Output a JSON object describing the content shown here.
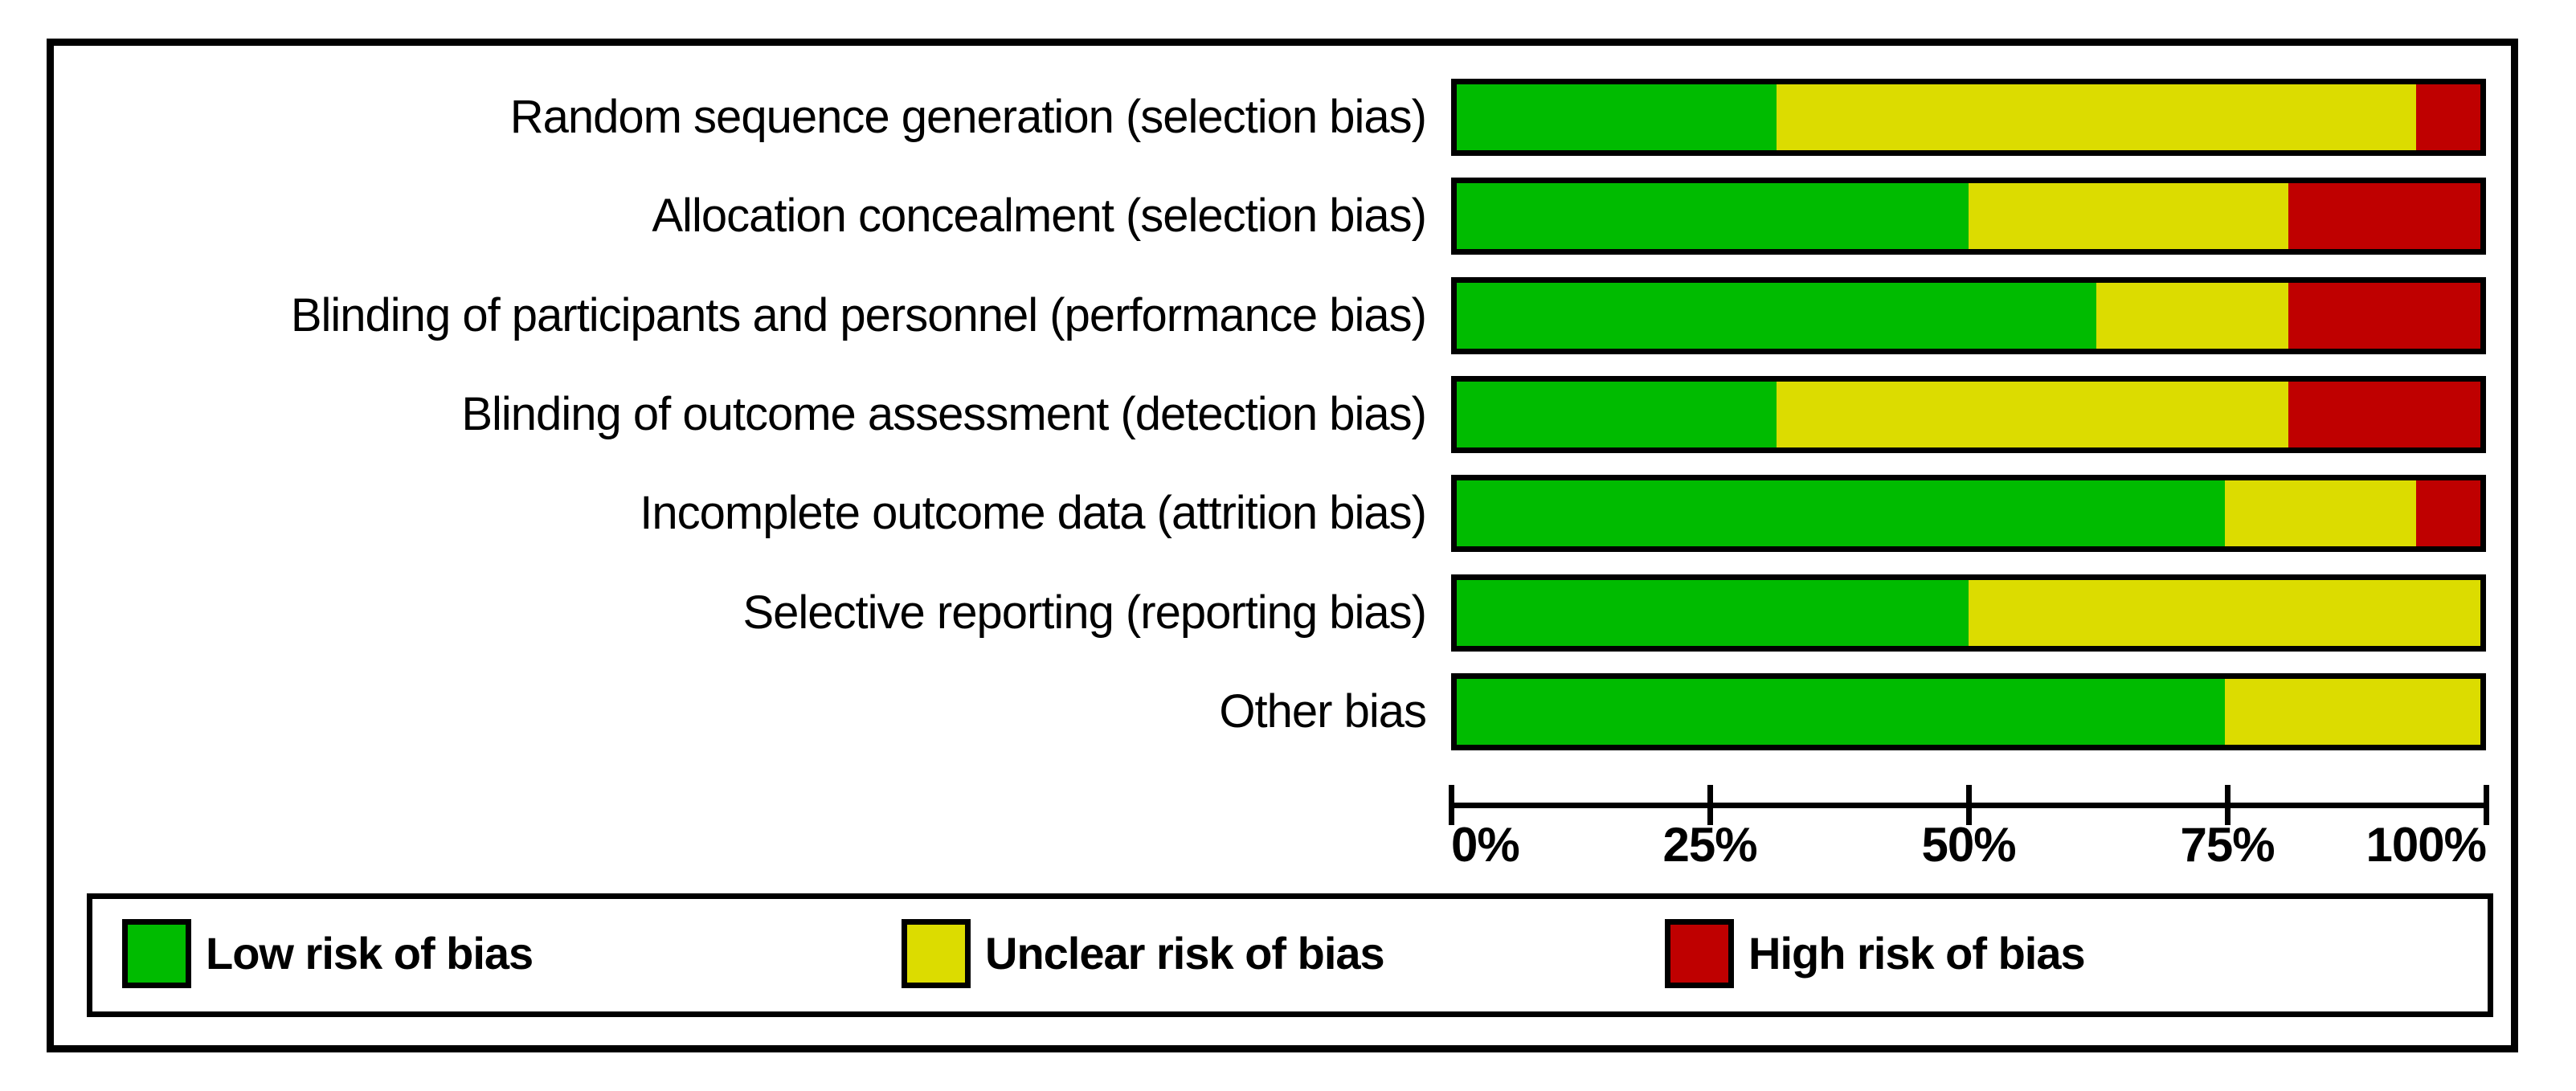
{
  "figure": {
    "background": "#ffffff",
    "border_color": "#000000"
  },
  "chart_data": {
    "type": "bar",
    "stacked": true,
    "orientation": "horizontal",
    "title": "",
    "categories": [
      "Random sequence generation (selection bias)",
      "Allocation concealment (selection bias)",
      "Blinding of participants and personnel (performance bias)",
      "Blinding of outcome assessment (detection bias)",
      "Incomplete outcome data (attrition bias)",
      "Selective reporting (reporting bias)",
      "Other bias"
    ],
    "series": [
      {
        "name": "Low risk of bias",
        "color": "#00bb00",
        "values_pct": [
          31.25,
          50,
          62.5,
          31.25,
          75,
          50,
          75
        ]
      },
      {
        "name": "Unclear risk of bias",
        "color": "#dcdc00",
        "values_pct": [
          62.5,
          31.25,
          18.75,
          50,
          18.75,
          50,
          25
        ]
      },
      {
        "name": "High risk of bias",
        "color": "#bf0000",
        "values_pct": [
          6.25,
          18.75,
          18.75,
          18.75,
          6.25,
          0,
          0
        ]
      }
    ],
    "x_axis": {
      "min": 0,
      "max": 100,
      "tick_labels": [
        "0%",
        "25%",
        "50%",
        "75%",
        "100%"
      ],
      "grid": false
    },
    "legend": {
      "position": "bottom",
      "items": [
        "Low risk of bias",
        "Unclear risk of bias",
        "High risk of bias"
      ]
    }
  }
}
